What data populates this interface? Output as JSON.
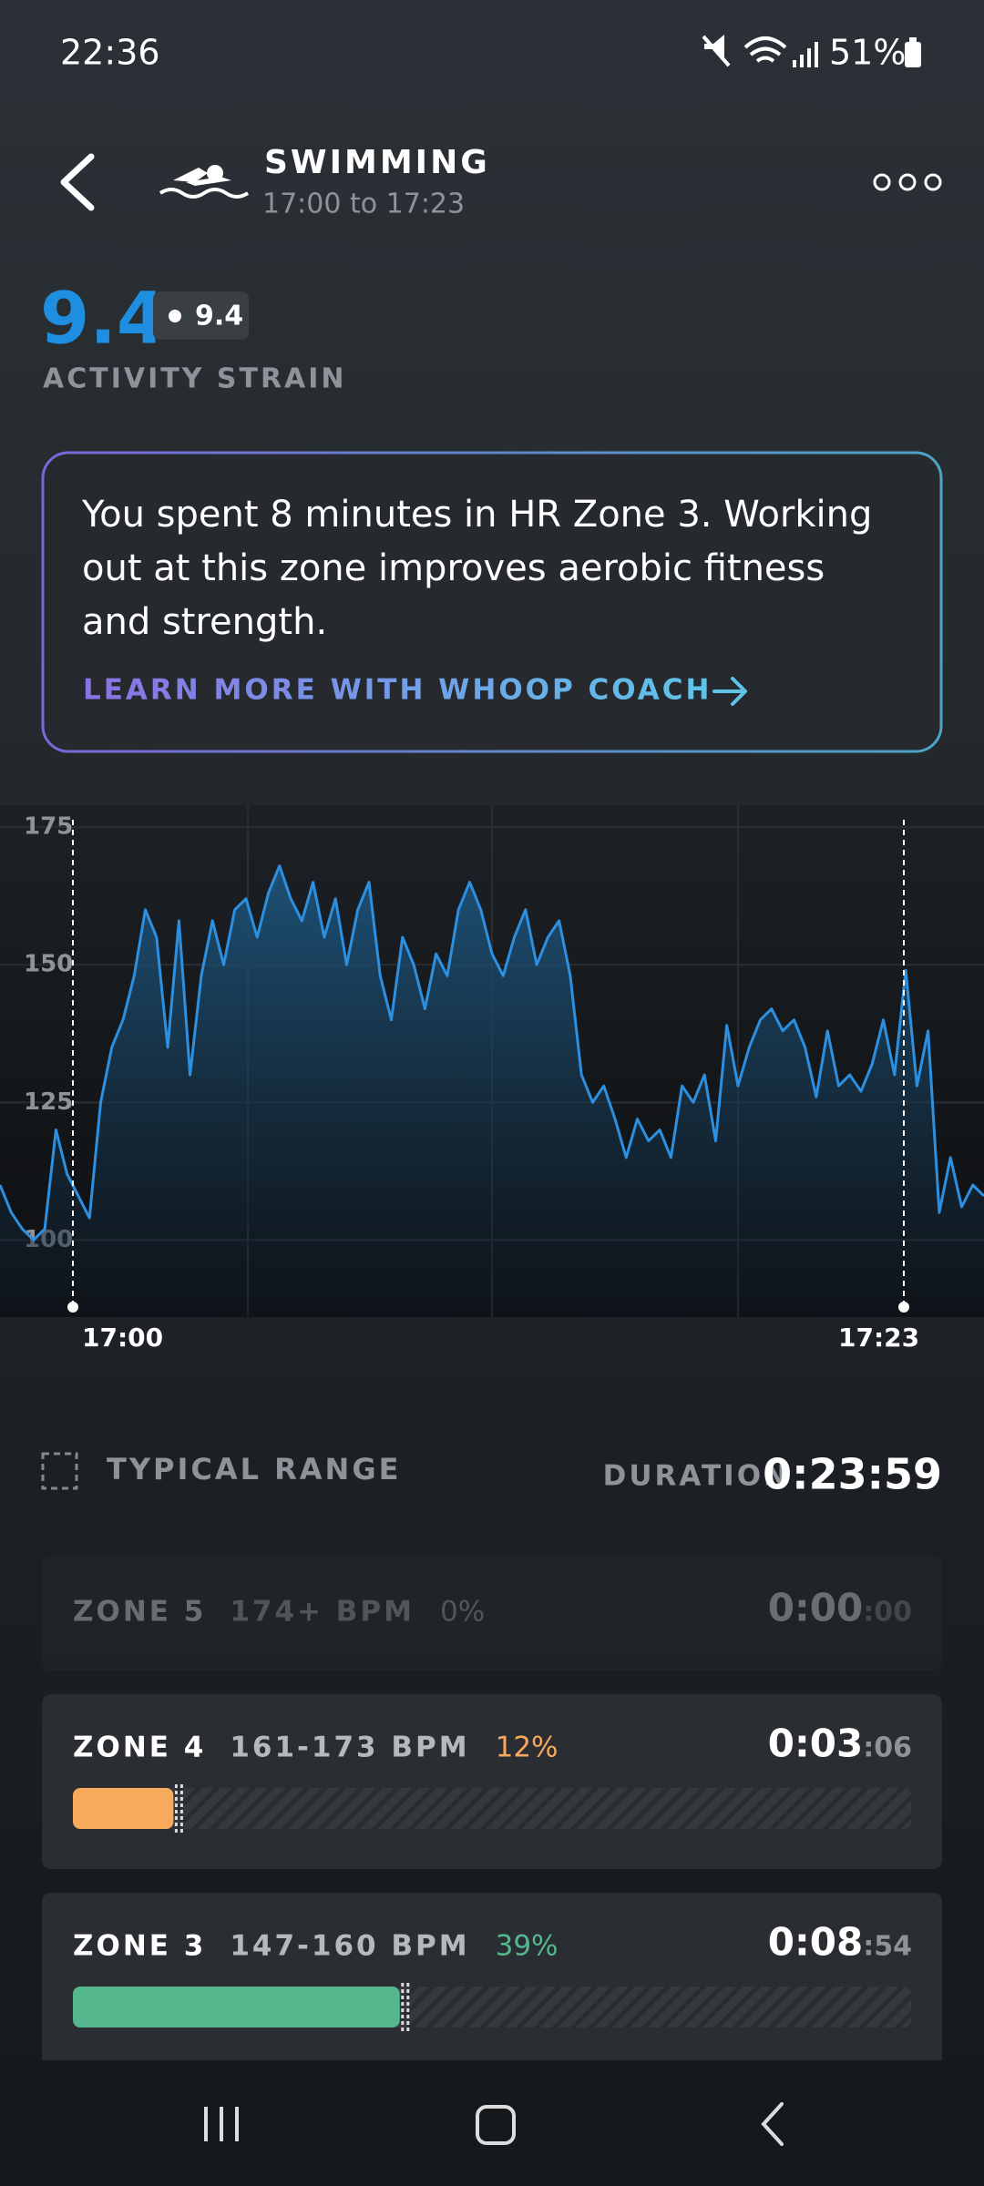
{
  "status_bar": {
    "time": "22:36",
    "battery": "51%"
  },
  "header": {
    "title": "SWIMMING",
    "subtitle": "17:00 to 17:23"
  },
  "strain": {
    "value": "9.4",
    "badge": "9.4",
    "label": "ACTIVITY STRAIN"
  },
  "coach_card": {
    "lines": [
      "You spent 8 minutes in HR Zone 3. Working",
      "out at this zone improves aerobic fitness",
      "and strength."
    ],
    "link": "LEARN MORE WITH WHOOP COACH"
  },
  "chart_data": {
    "type": "line",
    "series": [
      {
        "color": "#2d8fe0",
        "values": [
          110,
          105,
          102,
          100,
          102,
          120,
          112,
          108,
          104,
          125,
          135,
          140,
          148,
          160,
          155,
          135,
          158,
          130,
          148,
          158,
          150,
          160,
          162,
          155,
          163,
          168,
          162,
          158,
          165,
          155,
          162,
          150,
          160,
          165,
          148,
          140,
          155,
          150,
          142,
          152,
          148,
          160,
          165,
          160,
          152,
          148,
          155,
          160,
          150,
          155,
          158,
          148,
          130,
          125,
          128,
          122,
          115,
          122,
          118,
          120,
          115,
          128,
          125,
          130,
          118,
          139,
          128,
          135,
          140,
          142,
          138,
          140,
          135,
          126,
          138,
          128,
          130,
          127,
          132,
          140,
          130,
          149,
          128,
          138,
          105,
          115,
          106,
          110,
          108
        ]
      }
    ],
    "ylim": [
      86,
      179
    ],
    "yticks": [
      100,
      125,
      150,
      175
    ],
    "grid": true,
    "annotations": [
      "17:00",
      "17:23"
    ]
  },
  "summary": {
    "legend": "TYPICAL RANGE",
    "duration_label": "DURATION",
    "duration": "0:23:59"
  },
  "zones": [
    {
      "name": "ZONE 5",
      "range": "174+ BPM",
      "share": 0,
      "share_label": "0%",
      "time": "0:00",
      "time_seconds": ":00",
      "color": "#6b6f74"
    },
    {
      "name": "ZONE 4",
      "range": "161-173 BPM",
      "share": 12,
      "share_label": "12%",
      "time": "0:03",
      "time_seconds": ":06",
      "color": "#f7a95c"
    },
    {
      "name": "ZONE 3",
      "range": "147-160 BPM",
      "share": 39,
      "share_label": "39%",
      "time": "0:08",
      "time_seconds": ":54",
      "color": "#55b78e"
    }
  ]
}
